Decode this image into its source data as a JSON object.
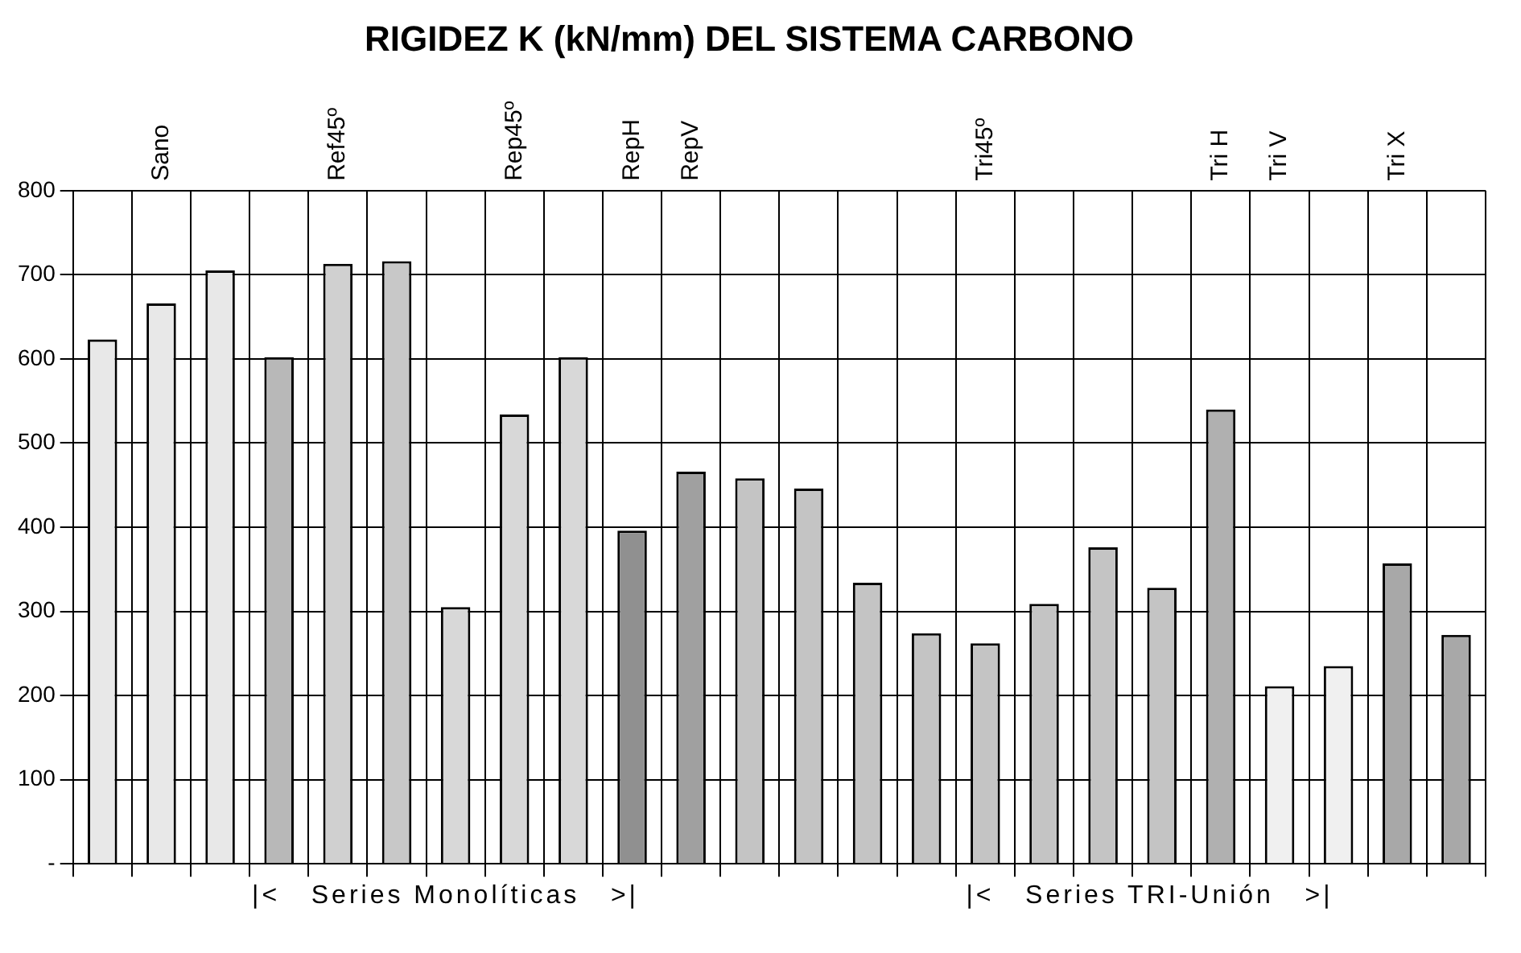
{
  "chart_data": {
    "type": "bar",
    "title": "RIGIDEZ K (kN/mm) DEL SISTEMA CARBONO",
    "categories": [
      null,
      "Sano",
      null,
      null,
      "Ref45º",
      null,
      null,
      "Rep45º",
      null,
      "RepH",
      "RepV",
      null,
      null,
      null,
      null,
      "Tri45º",
      null,
      null,
      null,
      "Tri H",
      "Tri V",
      null,
      "Tri X",
      null
    ],
    "values": [
      623,
      666,
      705,
      602,
      713,
      716,
      305,
      534,
      602,
      396,
      466,
      458,
      446,
      334,
      274,
      262,
      309,
      376,
      328,
      540,
      211,
      235,
      357,
      272
    ],
    "colors": [
      "#e8e8e8",
      "#e8e8e8",
      "#e8e8e8",
      "#b8b8b8",
      "#d0d0d0",
      "#c8c8c8",
      "#d8d8d8",
      "#d8d8d8",
      "#d8d8d8",
      "#909090",
      "#a0a0a0",
      "#c4c4c4",
      "#c4c4c4",
      "#c4c4c4",
      "#c4c4c4",
      "#c4c4c4",
      "#c4c4c4",
      "#c4c4c4",
      "#c4c4c4",
      "#b0b0b0",
      "#f0f0f0",
      "#f0f0f0",
      "#a8a8a8",
      "#a8a8a8"
    ],
    "ylim": [
      0,
      800
    ],
    "yticks": [
      {
        "value": 0,
        "label": "-"
      },
      100,
      200,
      300,
      400,
      500,
      600,
      700,
      800
    ],
    "grid": true,
    "legend": false,
    "annotations": [
      "|<   Series Monolíticas   >|",
      "|<   Series TRI-Unión   >|"
    ]
  }
}
